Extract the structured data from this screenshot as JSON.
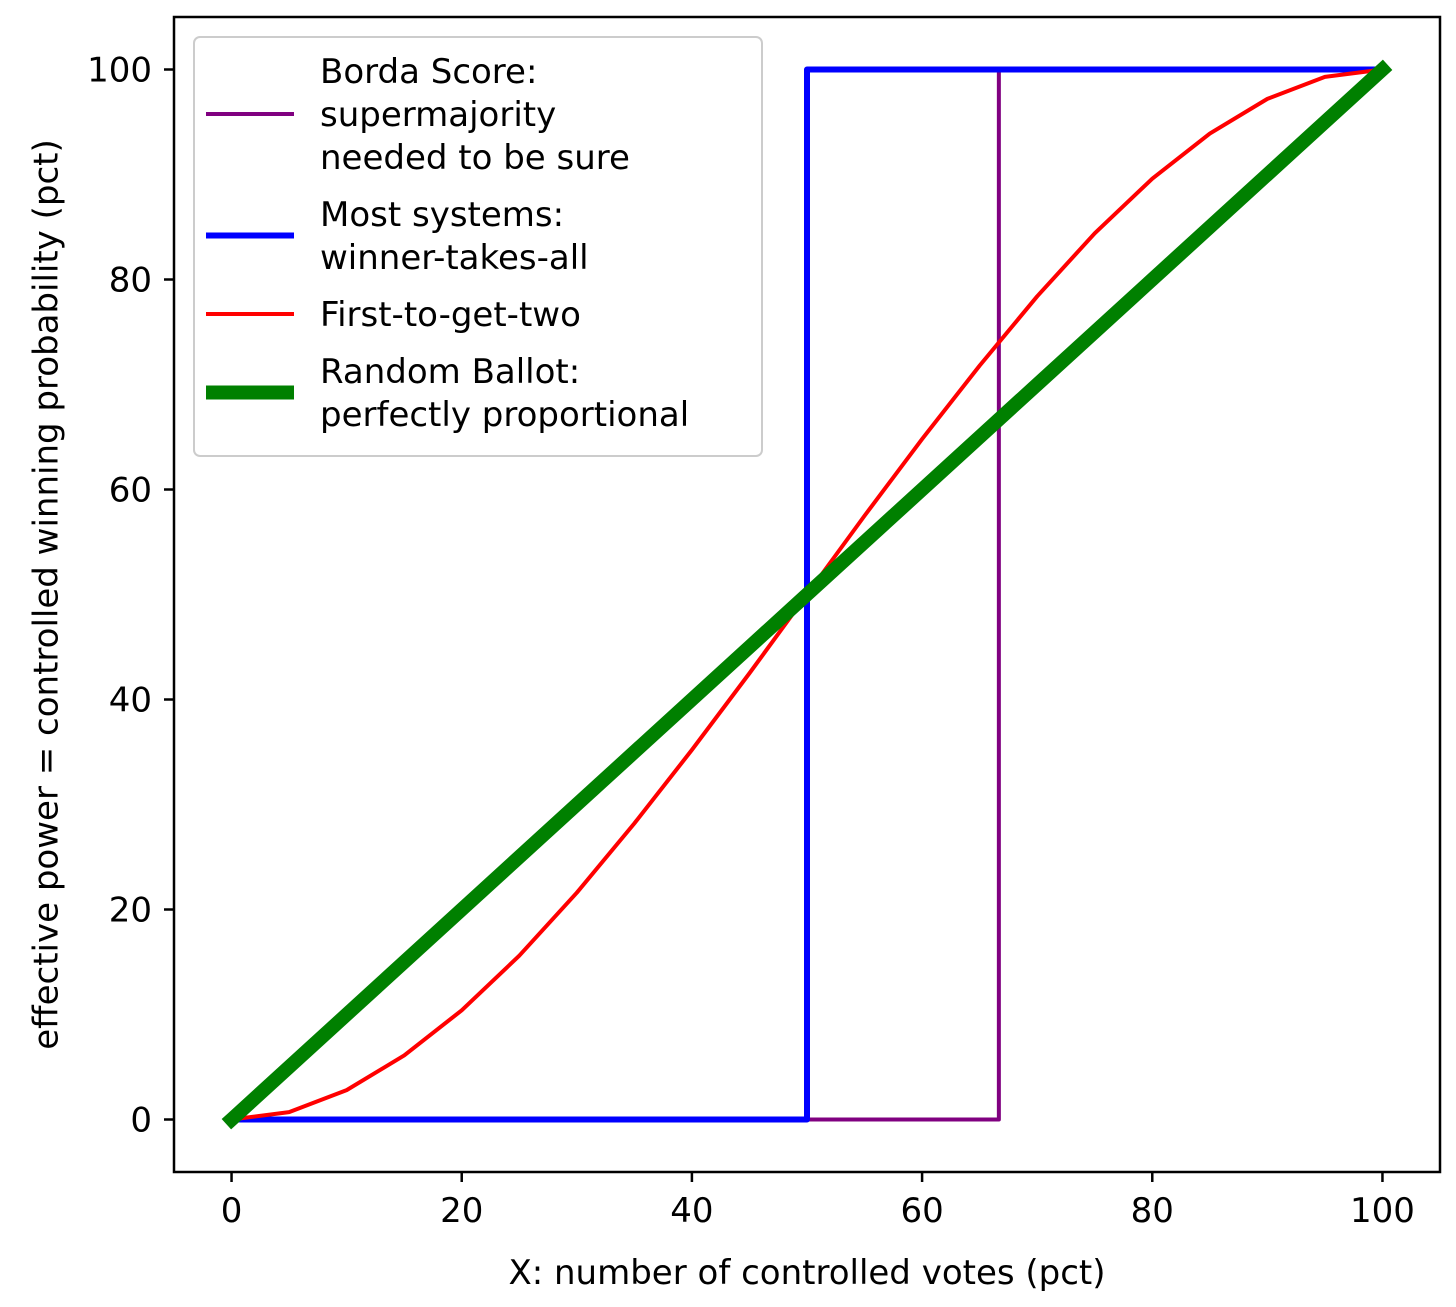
{
  "chart_data": {
    "type": "line",
    "title": "",
    "xlabel": "X: number of controlled votes (pct)",
    "ylabel": "effective power = controlled winning probability (pct)",
    "xlim": [
      -5,
      105
    ],
    "ylim": [
      -5,
      105
    ],
    "xticks": [
      0,
      20,
      40,
      60,
      80,
      100
    ],
    "yticks": [
      0,
      20,
      40,
      60,
      80,
      100
    ],
    "grid": false,
    "legend_position": "top-left",
    "series": [
      {
        "name": "Borda Score:\nsupermajority\nneeded to be sure",
        "color": "#800080",
        "x": [
          0,
          66.67,
          66.67,
          100
        ],
        "y": [
          0,
          0,
          100,
          100
        ]
      },
      {
        "name": "Most systems:\nwinner-takes-all",
        "color": "#0000ff",
        "x": [
          0,
          50,
          50,
          100
        ],
        "y": [
          0,
          0,
          100,
          100
        ]
      },
      {
        "name": "First-to-get-two",
        "color": "#ff0000",
        "x": [
          0,
          5,
          10,
          15,
          20,
          25,
          30,
          35,
          40,
          45,
          50,
          55,
          60,
          65,
          70,
          75,
          80,
          85,
          90,
          95,
          100
        ],
        "y": [
          0,
          0.7,
          2.8,
          6.1,
          10.4,
          15.6,
          21.6,
          28.2,
          35.2,
          42.5,
          50,
          57.5,
          64.8,
          71.8,
          78.4,
          84.4,
          89.6,
          93.9,
          97.2,
          99.3,
          100
        ]
      },
      {
        "name": "Random Ballot:\nperfectly proportional",
        "color": "#008000",
        "x": [
          0,
          100
        ],
        "y": [
          0,
          100
        ]
      }
    ]
  }
}
